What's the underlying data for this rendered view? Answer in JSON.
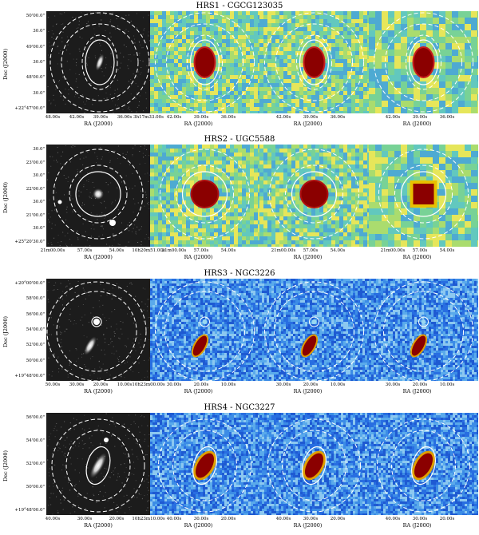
{
  "rows": [
    {
      "title": "HRS1 - CGCG123035",
      "ylabel": "Dec (J2000)",
      "yticks": [
        "50'00.0\"",
        "30.0\"",
        "49'00.0\"",
        "30.0\"",
        "48'00.0\"",
        "30.0\"",
        "+22°47'00.0\""
      ],
      "optical_xticks": [
        "48.00s",
        "42.00s",
        "39.00s",
        "36.00s",
        "3h17m33.00s"
      ],
      "map_xticks": [
        "42.00s",
        "39.00s",
        "36.00s"
      ],
      "xlabel": "RA (J2000)",
      "colormap": "viridis-like",
      "bg_color": "#7ecfa8"
    },
    {
      "title": "HRS2 - UGC5588",
      "ylabel": "Dec (J2000)",
      "yticks": [
        "30.0\"",
        "23'00.0\"",
        "30.0\"",
        "22'00.0\"",
        "30.0\"",
        "21'00.0\"",
        "30.0\"",
        "+25°20'30.0\""
      ],
      "optical_xticks": [
        "21m00.00s",
        "57.00s",
        "54.00s",
        "10h20m51.00s"
      ],
      "map_xticks": [
        "21m00.00s",
        "57.00s",
        "54.00s"
      ],
      "xlabel": "RA (J2000)",
      "colormap": "viridis-like",
      "bg_color": "#86c9c9"
    },
    {
      "title": "HRS3 - NGC3226",
      "ylabel": "Dec (J2000)",
      "yticks": [
        "+20°00'00.0\"",
        "58'00.0\"",
        "56'00.0\"",
        "54'00.0\"",
        "52'00.0\"",
        "50'00.0\"",
        "+19°48'00.0\""
      ],
      "optical_xticks": [
        "50.00s",
        "30.00s",
        "20.00s",
        "10.00s",
        "10h23m00.00s"
      ],
      "map_xticks": [
        "30.00s",
        "20.00s",
        "10.00s"
      ],
      "xlabel": "RA (J2000)",
      "colormap": "blue",
      "bg_color": "#2a7bdc"
    },
    {
      "title": "HRS4 - NGC3227",
      "ylabel": "Dec (J2000)",
      "yticks": [
        "56'00.0\"",
        "54'00.0\"",
        "52'00.0\"",
        "50'00.0\"",
        "+19°48'00.0\""
      ],
      "optical_xticks": [
        "40.00s",
        "30.00s",
        "20.00s",
        "10h23m10.00s"
      ],
      "map_xticks": [
        "40.00s",
        "30.00s",
        "20.00s"
      ],
      "xlabel": "RA (J2000)",
      "colormap": "blue",
      "bg_color": "#2a6fe0"
    }
  ]
}
